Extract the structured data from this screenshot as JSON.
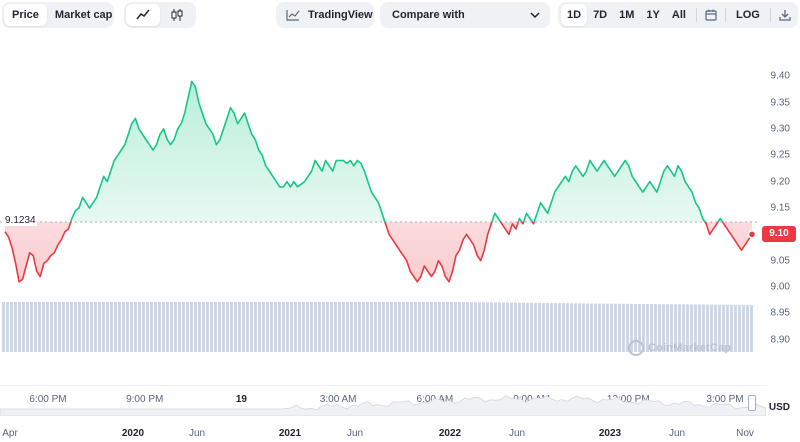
{
  "toolbar": {
    "view_tabs": [
      {
        "label": "Price",
        "active": true
      },
      {
        "label": "Market cap",
        "active": false
      }
    ],
    "chart_type_icons": [
      "line-chart-icon",
      "candlestick-icon"
    ],
    "tradingview_label": "TradingView",
    "compare_label": "Compare with",
    "ranges": [
      {
        "label": "1D",
        "active": true
      },
      {
        "label": "7D",
        "active": false
      },
      {
        "label": "1M",
        "active": false
      },
      {
        "label": "1Y",
        "active": false
      },
      {
        "label": "All",
        "active": false
      }
    ],
    "calendar_icon": "calendar-icon",
    "log_label": "LOG",
    "download_icon": "download-icon"
  },
  "chart": {
    "reference_label": "9.1234",
    "current_price_label": "9.10",
    "currency_label": "USD",
    "watermark": "CoinMarketCap",
    "colors": {
      "up": "#16c784",
      "down": "#ea3943",
      "volume": "#cfd6e4"
    }
  },
  "chart_data": {
    "type": "line",
    "ylim": [
      8.875,
      9.425
    ],
    "yticks": [
      "9.40",
      "9.35",
      "9.30",
      "9.25",
      "9.20",
      "9.15",
      "9.10",
      "9.05",
      "9.00",
      "8.95",
      "8.90"
    ],
    "reference_value": 9.1234,
    "current_value": 9.1,
    "xticks": [
      {
        "label": "6:00 PM",
        "bold": false
      },
      {
        "label": "9:00 PM",
        "bold": false
      },
      {
        "label": "19",
        "bold": true
      },
      {
        "label": "3:00 AM",
        "bold": false
      },
      {
        "label": "6:00 AM",
        "bold": false
      },
      {
        "label": "9:00 AM",
        "bold": false
      },
      {
        "label": "12:00 PM",
        "bold": false
      },
      {
        "label": "3:00 PM",
        "bold": false
      }
    ],
    "series": [
      {
        "values": [
          9.105,
          9.095,
          9.075,
          9.045,
          9.01,
          9.015,
          9.04,
          9.065,
          9.06,
          9.03,
          9.02,
          9.045,
          9.05,
          9.06,
          9.065,
          9.08,
          9.09,
          9.105,
          9.11,
          9.13,
          9.145,
          9.15,
          9.17,
          9.16,
          9.15,
          9.16,
          9.17,
          9.19,
          9.21,
          9.2,
          9.22,
          9.24,
          9.25,
          9.26,
          9.27,
          9.29,
          9.31,
          9.32,
          9.3,
          9.29,
          9.28,
          9.27,
          9.26,
          9.27,
          9.29,
          9.3,
          9.28,
          9.27,
          9.28,
          9.3,
          9.31,
          9.33,
          9.36,
          9.39,
          9.38,
          9.35,
          9.33,
          9.31,
          9.3,
          9.29,
          9.27,
          9.28,
          9.3,
          9.32,
          9.34,
          9.33,
          9.31,
          9.32,
          9.33,
          9.31,
          9.29,
          9.28,
          9.26,
          9.25,
          9.23,
          9.22,
          9.21,
          9.2,
          9.19,
          9.19,
          9.2,
          9.19,
          9.2,
          9.19,
          9.195,
          9.2,
          9.21,
          9.22,
          9.24,
          9.23,
          9.22,
          9.24,
          9.23,
          9.22,
          9.24,
          9.24,
          9.24,
          9.235,
          9.24,
          9.23,
          9.24,
          9.235,
          9.22,
          9.2,
          9.18,
          9.17,
          9.16,
          9.14,
          9.12,
          9.1,
          9.09,
          9.08,
          9.07,
          9.06,
          9.05,
          9.03,
          9.02,
          9.01,
          9.02,
          9.04,
          9.03,
          9.02,
          9.03,
          9.05,
          9.04,
          9.02,
          9.01,
          9.03,
          9.06,
          9.07,
          9.09,
          9.1,
          9.09,
          9.08,
          9.06,
          9.05,
          9.07,
          9.1,
          9.12,
          9.14,
          9.13,
          9.12,
          9.11,
          9.1,
          9.12,
          9.11,
          9.13,
          9.12,
          9.14,
          9.13,
          9.12,
          9.14,
          9.16,
          9.15,
          9.14,
          9.16,
          9.18,
          9.19,
          9.2,
          9.21,
          9.2,
          9.22,
          9.23,
          9.22,
          9.21,
          9.22,
          9.24,
          9.23,
          9.22,
          9.23,
          9.24,
          9.23,
          9.22,
          9.21,
          9.22,
          9.23,
          9.24,
          9.23,
          9.21,
          9.2,
          9.19,
          9.18,
          9.19,
          9.2,
          9.19,
          9.18,
          9.2,
          9.22,
          9.23,
          9.22,
          9.21,
          9.23,
          9.22,
          9.2,
          9.19,
          9.18,
          9.16,
          9.15,
          9.13,
          9.12,
          9.1,
          9.11,
          9.12,
          9.13,
          9.12,
          9.11,
          9.1,
          9.09,
          9.08,
          9.07,
          9.08,
          9.09,
          9.1
        ]
      }
    ]
  },
  "navigator": {
    "ticks": [
      {
        "label": "Apr",
        "bold": false
      },
      {
        "label": "2020",
        "bold": true
      },
      {
        "label": "Jun",
        "bold": false
      },
      {
        "label": "2021",
        "bold": true
      },
      {
        "label": "Jun",
        "bold": false
      },
      {
        "label": "2022",
        "bold": true
      },
      {
        "label": "Jun",
        "bold": false
      },
      {
        "label": "2023",
        "bold": true
      },
      {
        "label": "Jun",
        "bold": false
      },
      {
        "label": "Nov",
        "bold": false
      }
    ]
  }
}
